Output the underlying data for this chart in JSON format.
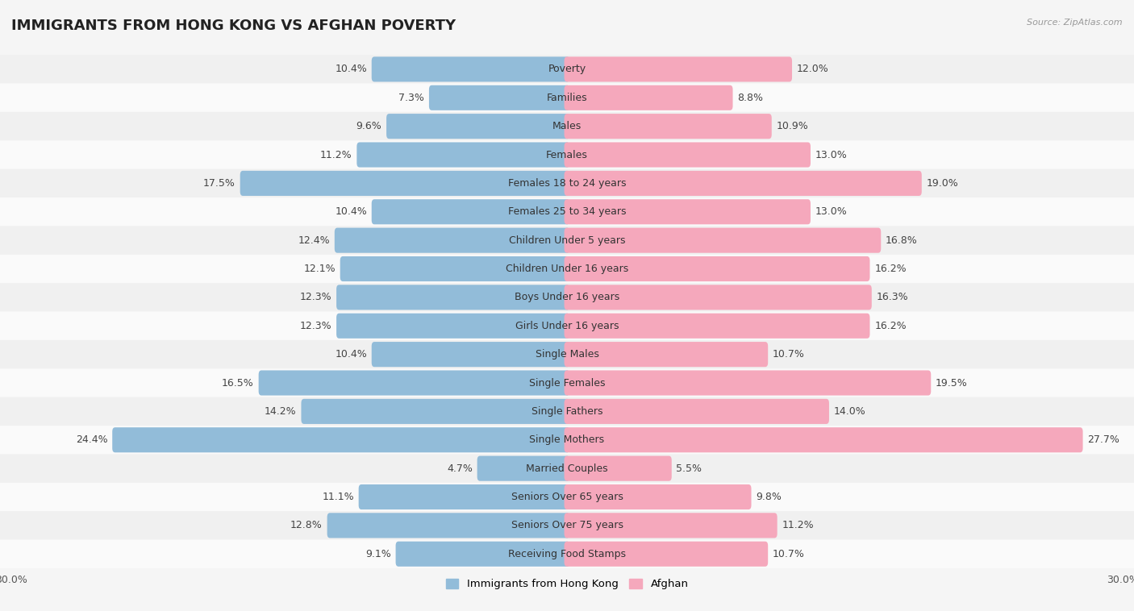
{
  "title": "IMMIGRANTS FROM HONG KONG VS AFGHAN POVERTY",
  "source": "Source: ZipAtlas.com",
  "categories": [
    "Poverty",
    "Families",
    "Males",
    "Females",
    "Females 18 to 24 years",
    "Females 25 to 34 years",
    "Children Under 5 years",
    "Children Under 16 years",
    "Boys Under 16 years",
    "Girls Under 16 years",
    "Single Males",
    "Single Females",
    "Single Fathers",
    "Single Mothers",
    "Married Couples",
    "Seniors Over 65 years",
    "Seniors Over 75 years",
    "Receiving Food Stamps"
  ],
  "hong_kong_values": [
    10.4,
    7.3,
    9.6,
    11.2,
    17.5,
    10.4,
    12.4,
    12.1,
    12.3,
    12.3,
    10.4,
    16.5,
    14.2,
    24.4,
    4.7,
    11.1,
    12.8,
    9.1
  ],
  "afghan_values": [
    12.0,
    8.8,
    10.9,
    13.0,
    19.0,
    13.0,
    16.8,
    16.2,
    16.3,
    16.2,
    10.7,
    19.5,
    14.0,
    27.7,
    5.5,
    9.8,
    11.2,
    10.7
  ],
  "hong_kong_color": "#92bcd9",
  "afghan_color": "#f5a8bc",
  "row_color_even": "#f0f0f0",
  "row_color_odd": "#fafafa",
  "background_color": "#f5f5f5",
  "xlim": 30.0,
  "bar_height": 0.58,
  "label_fontsize": 9.0,
  "cat_fontsize": 9.0,
  "title_fontsize": 13,
  "legend_hk": "Immigrants from Hong Kong",
  "legend_af": "Afghan"
}
